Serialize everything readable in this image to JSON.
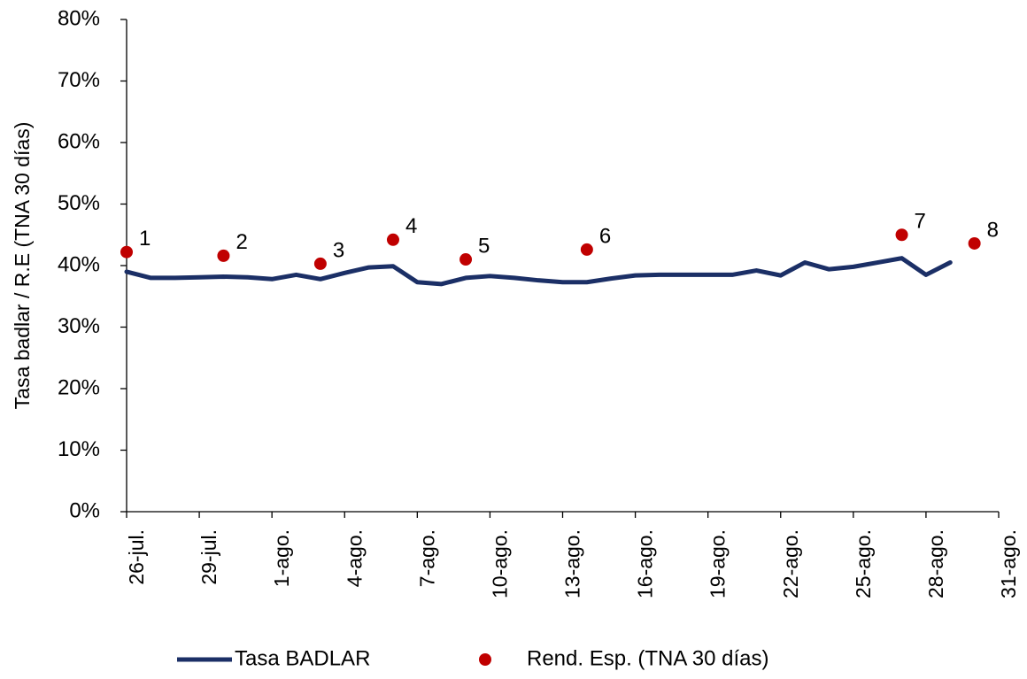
{
  "chart_data": {
    "type": "line",
    "y_label": "Tasa badlar / R.E (TNA 30 días)",
    "categories": [
      "26-jul.",
      null,
      null,
      "29-jul.",
      null,
      null,
      "1-ago.",
      null,
      null,
      "4-ago.",
      null,
      null,
      "7-ago.",
      null,
      null,
      "10-ago.",
      null,
      null,
      "13-ago.",
      null,
      null,
      "16-ago.",
      null,
      null,
      "19-ago.",
      null,
      null,
      "22-ago.",
      null,
      null,
      "25-ago.",
      null,
      null,
      "28-ago.",
      null,
      null,
      "31-ago."
    ],
    "series": [
      {
        "name": "Tasa BADLAR",
        "type": "line",
        "color": "#1b2f66",
        "values": [
          39.0,
          38.0,
          38.0,
          38.1,
          38.2,
          38.1,
          37.8,
          38.5,
          37.8,
          38.8,
          39.7,
          39.9,
          37.3,
          37.0,
          38.0,
          38.3,
          38.0,
          37.6,
          37.3,
          37.3,
          37.9,
          38.4,
          38.5,
          38.5,
          38.5,
          38.5,
          39.2,
          38.4,
          40.5,
          39.4,
          39.8,
          40.5,
          41.2,
          38.5,
          40.5,
          null,
          null
        ]
      },
      {
        "name": "Rend. Esp. (TNA 30 días)",
        "type": "scatter",
        "color": "#c00000",
        "values": [
          42.2,
          null,
          null,
          null,
          41.6,
          null,
          null,
          null,
          40.3,
          null,
          null,
          44.2,
          null,
          null,
          41.0,
          null,
          null,
          null,
          null,
          42.6,
          null,
          null,
          null,
          null,
          null,
          null,
          null,
          null,
          null,
          null,
          null,
          null,
          45.0,
          null,
          null,
          43.6,
          null
        ],
        "point_labels": [
          "1",
          null,
          null,
          null,
          "2",
          null,
          null,
          null,
          "3",
          null,
          null,
          "4",
          null,
          null,
          "5",
          null,
          null,
          null,
          null,
          "6",
          null,
          null,
          null,
          null,
          null,
          null,
          null,
          null,
          null,
          null,
          null,
          null,
          "7",
          null,
          null,
          "8",
          null
        ]
      }
    ],
    "ylim": [
      0,
      80
    ],
    "yticks": [
      {
        "value": 0,
        "label": "0%"
      },
      {
        "value": 10,
        "label": "10%"
      },
      {
        "value": 20,
        "label": "20%"
      },
      {
        "value": 30,
        "label": "30%"
      },
      {
        "value": 40,
        "label": "40%"
      },
      {
        "value": 50,
        "label": "50%"
      },
      {
        "value": 60,
        "label": "60%"
      },
      {
        "value": 70,
        "label": "70%"
      },
      {
        "value": 80,
        "label": "80%"
      }
    ],
    "legend": "bottom"
  }
}
